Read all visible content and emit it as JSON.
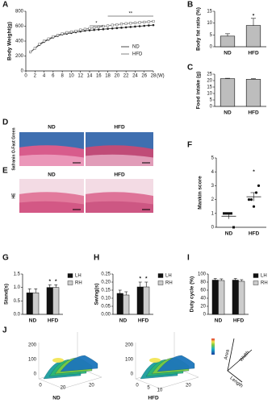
{
  "chart_data": [
    {
      "type": "line",
      "panel": "A",
      "y_label": "Body Weight(g)",
      "x_label": "(W)",
      "x": [
        1,
        2,
        3,
        4,
        5,
        6,
        7,
        8,
        9,
        10,
        11,
        12,
        13,
        14,
        15,
        16,
        17,
        18,
        19,
        20,
        21,
        22,
        23,
        24,
        25,
        26,
        27,
        28
      ],
      "series": [
        {
          "name": "ND",
          "color": "#222222",
          "values": [
            250,
            300,
            350,
            390,
            420,
            450,
            470,
            490,
            500,
            510,
            520,
            530,
            540,
            545,
            550,
            555,
            560,
            565,
            570,
            575,
            580,
            585,
            590,
            595,
            600,
            605,
            610,
            615
          ]
        },
        {
          "name": "HFD",
          "color": "#666666",
          "values": [
            255,
            305,
            360,
            400,
            430,
            460,
            480,
            500,
            515,
            525,
            535,
            550,
            560,
            570,
            580,
            590,
            600,
            605,
            615,
            620,
            630,
            635,
            640,
            645,
            650,
            655,
            660,
            665
          ]
        }
      ],
      "xlim": [
        0,
        28
      ],
      "ylim": [
        0,
        800
      ],
      "xticks": [
        0,
        2,
        4,
        6,
        8,
        10,
        12,
        14,
        16,
        18,
        20,
        22,
        24,
        26,
        28
      ],
      "yticks": [
        0,
        200,
        400,
        600,
        800
      ],
      "annotations": [
        "*",
        "**"
      ]
    },
    {
      "type": "bar",
      "panel": "B",
      "y_label": "Body fat ratio (%)",
      "categories": [
        "ND",
        "HFD"
      ],
      "values": [
        4.5,
        9
      ],
      "errors": [
        1,
        3
      ],
      "color": "#bdbdbd",
      "ylim": [
        0,
        15
      ],
      "yticks": [
        0,
        5,
        10,
        15
      ],
      "annotations": [
        "*"
      ]
    },
    {
      "type": "bar",
      "panel": "C",
      "y_label": "Food intake (g)",
      "categories": [
        "ND",
        "HFD"
      ],
      "values": [
        21.5,
        21
      ],
      "errors": [
        0.3,
        0.5
      ],
      "color": "#bdbdbd",
      "ylim": [
        0,
        25
      ],
      "yticks": [
        0,
        5,
        10,
        15,
        20,
        25
      ]
    },
    {
      "type": "image",
      "panel": "D",
      "labels": [
        "ND",
        "HFD"
      ],
      "side_label": "Safranin O-Fast Green"
    },
    {
      "type": "image",
      "panel": "E",
      "labels": [
        "ND",
        "HFD"
      ],
      "side_label": "HE"
    },
    {
      "type": "scatter",
      "panel": "F",
      "y_label": "Mankin score",
      "categories": [
        "ND",
        "HFD"
      ],
      "groups": [
        [
          1,
          1,
          1,
          1,
          0
        ],
        [
          2,
          2,
          1.5,
          2.5,
          3
        ]
      ],
      "mean": [
        0.8,
        2.2
      ],
      "sem": [
        0.2,
        0.3
      ],
      "ylim": [
        0,
        5
      ],
      "yticks": [
        0,
        1,
        2,
        3,
        4,
        5
      ],
      "annotations": [
        "*"
      ]
    },
    {
      "type": "grouped_bar",
      "panel": "G",
      "y_label": "Stand(s)",
      "categories": [
        "ND",
        "HFD"
      ],
      "series": [
        {
          "name": "LH",
          "color": "#111111",
          "values": [
            0.8,
            1.0
          ],
          "errors": [
            0.15,
            0.1
          ]
        },
        {
          "name": "RH",
          "color": "#cccccc",
          "values": [
            0.8,
            1.0
          ],
          "errors": [
            0.15,
            0.1
          ]
        }
      ],
      "ylim": [
        0,
        1.5
      ],
      "yticks": [
        {
          "value": 0,
          "label": "0.0"
        },
        0.5,
        {
          "value": 1,
          "label": "1.0"
        },
        1.5
      ],
      "annotations": [
        "*",
        "*"
      ]
    },
    {
      "type": "grouped_bar",
      "panel": "H",
      "y_label": "Swing(s)",
      "categories": [
        "ND",
        "HFD"
      ],
      "series": [
        {
          "name": "LH",
          "color": "#111111",
          "values": [
            0.13,
            0.17
          ],
          "errors": [
            0.02,
            0.03
          ]
        },
        {
          "name": "RH",
          "color": "#cccccc",
          "values": [
            0.12,
            0.17
          ],
          "errors": [
            0.02,
            0.03
          ]
        }
      ],
      "ylim": [
        0,
        0.25
      ],
      "yticks": [
        {
          "value": 0,
          "label": "0.00"
        },
        0.05,
        {
          "value": 0.1,
          "label": "0.10"
        },
        0.15,
        {
          "value": 0.2,
          "label": "0.20"
        },
        0.25
      ],
      "annotations": [
        "*",
        "*"
      ]
    },
    {
      "type": "grouped_bar",
      "panel": "I",
      "y_label": "Duty cycle (%)",
      "categories": [
        "ND",
        "HFD"
      ],
      "series": [
        {
          "name": "LH",
          "color": "#111111",
          "values": [
            85,
            85
          ],
          "errors": [
            4,
            4
          ]
        },
        {
          "name": "RH",
          "color": "#cccccc",
          "values": [
            84,
            82
          ],
          "errors": [
            4,
            4
          ]
        }
      ],
      "ylim": [
        0,
        100
      ],
      "yticks": [
        0,
        20,
        40,
        60,
        80,
        100
      ]
    },
    {
      "type": "surface",
      "panel": "J",
      "labels": [
        "ND",
        "HFD"
      ],
      "z_ticks": [
        200,
        100,
        0
      ],
      "nd_ticks": [
        0,
        20
      ],
      "hfd_ticks": [
        0,
        5,
        10
      ],
      "depth_tick": 20,
      "axis_names": [
        "Area",
        "Width",
        "Length"
      ]
    }
  ]
}
